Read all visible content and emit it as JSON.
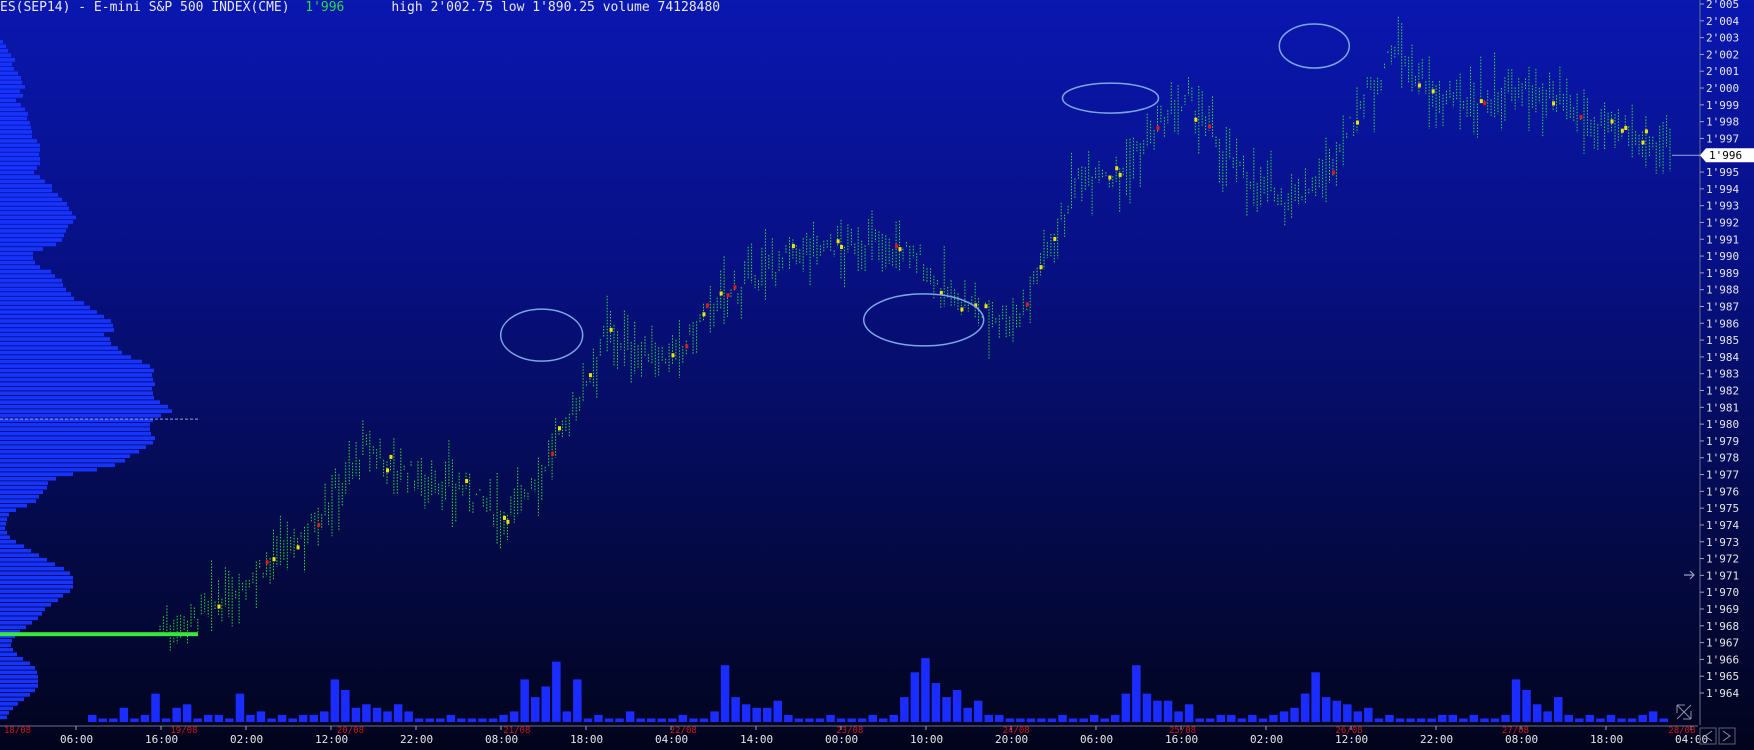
{
  "header": {
    "symbol": "ES(SEP14) - E-mini S&P 500 INDEX(CME)",
    "last": "1'996",
    "high_label": "high",
    "high": "2'002.75",
    "low_label": "low",
    "low": "1'890.25",
    "volume_label": "volume",
    "volume": "74128480"
  },
  "colors": {
    "background_top": "#0a17b0",
    "background_bottom": "#02041c",
    "price_bar": "#2bdc3a",
    "highlight_yellow": "#f2e400",
    "highlight_red": "#e01818",
    "volume_bar": "#1a2cff",
    "profile_bar": "#1733ff",
    "poc_line": "#38e83c",
    "circle": "#7aa6e6",
    "date_label": "#d01818"
  },
  "chart_data": {
    "type": "bar",
    "title": "",
    "ylim": [
      1963.25,
      2005.25
    ],
    "y_ticks": [
      "1'964",
      "1'965",
      "1'966",
      "1'967",
      "1'968",
      "1'969",
      "1'970",
      "1'971",
      "1'972",
      "1'973",
      "1'974",
      "1'975",
      "1'976",
      "1'977",
      "1'978",
      "1'979",
      "1'980",
      "1'981",
      "1'982",
      "1'983",
      "1'984",
      "1'985",
      "1'986",
      "1'987",
      "1'988",
      "1'989",
      "1'990",
      "1'991",
      "1'992",
      "1'993",
      "1'994",
      "1'995",
      "1'996",
      "1'997",
      "1'998",
      "1'999",
      "2'000",
      "2'001",
      "2'002",
      "2'003",
      "2'004",
      "2'005"
    ],
    "current_price_label": "1'996",
    "current_price": 1996,
    "x_time_labels": [
      "06:00",
      "16:00",
      "02:00",
      "12:00",
      "22:00",
      "08:00",
      "18:00",
      "04:00",
      "14:00",
      "00:00",
      "10:00",
      "20:00",
      "06:00",
      "16:00",
      "02:00",
      "12:00",
      "22:00",
      "08:00",
      "18:00",
      "04:00"
    ],
    "x_date_labels": [
      "18/08",
      "19/08",
      "20/08",
      "21/08",
      "22/08",
      "23/08",
      "24/08",
      "25/08",
      "26/08",
      "27/08",
      "28/08"
    ],
    "price_path_knots": [
      1967.8,
      1968.5,
      1969.6,
      1971.5,
      1973,
      1975.5,
      1978.6,
      1977.2,
      1976.5,
      1976,
      1974.5,
      1976.8,
      1980.6,
      1985.5,
      1984.2,
      1983.8,
      1986.8,
      1988.4,
      1989.6,
      1990.6,
      1990.4,
      1990.8,
      1990,
      1987.6,
      1986.6,
      1986.3,
      1991.2,
      1995.3,
      1994.8,
      1997.2,
      1999.2,
      1996.1,
      1994.2,
      1993.3,
      1994.8,
      1999,
      2002.4,
      1999.5,
      1999.2,
      1999.4,
      1999.7,
      1998.5,
      1997.6,
      1997.1,
      1996.6
    ],
    "volume_bars": [
      2,
      1,
      1,
      4,
      1,
      2,
      8,
      1,
      4,
      5,
      1,
      2,
      2,
      1,
      8,
      2,
      3,
      1,
      2,
      1,
      2,
      2,
      3,
      12,
      9,
      4,
      5,
      4,
      3,
      5,
      3,
      1,
      1,
      1,
      2,
      1,
      1,
      1,
      1,
      2,
      3,
      12,
      7,
      10,
      17,
      3,
      12,
      1,
      2,
      1,
      1,
      3,
      1,
      1,
      1,
      1,
      2,
      1,
      1,
      3,
      16,
      7,
      5,
      4,
      4,
      6,
      2,
      1,
      1,
      1,
      2,
      1,
      1,
      1,
      2,
      1,
      2,
      7,
      14,
      18,
      11,
      7,
      9,
      4,
      6,
      2,
      2,
      1,
      1,
      1,
      1,
      1,
      2,
      1,
      1,
      2,
      1,
      2,
      8,
      16,
      8,
      6,
      6,
      3,
      5,
      1,
      1,
      2,
      2,
      1,
      2,
      1,
      2,
      3,
      4,
      8,
      14,
      7,
      6,
      5,
      3,
      4,
      1,
      2,
      1,
      1,
      1,
      1,
      2,
      2,
      1,
      2,
      1,
      1,
      2,
      12,
      9,
      5,
      3,
      7,
      2,
      1,
      2,
      1,
      2,
      1,
      1,
      2,
      3,
      1
    ],
    "volume_profile": [
      3,
      6,
      8,
      11,
      15,
      12,
      14,
      18,
      21,
      22,
      25,
      20,
      23,
      16,
      21,
      25,
      28,
      27,
      30,
      31,
      32,
      32,
      37,
      40,
      40,
      39,
      40,
      40,
      37,
      34,
      40,
      45,
      52,
      52,
      58,
      62,
      67,
      69,
      72,
      76,
      73,
      68,
      66,
      64,
      62,
      56,
      43,
      33,
      33,
      35,
      40,
      51,
      55,
      62,
      63,
      66,
      71,
      74,
      84,
      90,
      97,
      104,
      111,
      113,
      114,
      104,
      110,
      111,
      118,
      122,
      131,
      142,
      150,
      154,
      152,
      153,
      155,
      152,
      153,
      154,
      160,
      168,
      172,
      161,
      153,
      150,
      150,
      151,
      155,
      153,
      146,
      139,
      130,
      125,
      115,
      97,
      73,
      56,
      48,
      47,
      43,
      39,
      36,
      27,
      16,
      9,
      7,
      6,
      5,
      7,
      10,
      16,
      24,
      31,
      39,
      47,
      55,
      64,
      70,
      73,
      73,
      73,
      70,
      63,
      58,
      51,
      45,
      42,
      38,
      32,
      26,
      20,
      15,
      12,
      11,
      13,
      17,
      23,
      30,
      35,
      37,
      38,
      38,
      38,
      35,
      30,
      24,
      18,
      13,
      9,
      7
    ],
    "poc_price": 1967.5,
    "value_area_high": 1980.3,
    "highlights": [
      {
        "x": 0.309,
        "y": 1985.3
      },
      {
        "x": 0.534,
        "y": 1986.2
      },
      {
        "x": 0.644,
        "y": 1999.4
      },
      {
        "x": 0.764,
        "y": 2002.5
      }
    ]
  }
}
